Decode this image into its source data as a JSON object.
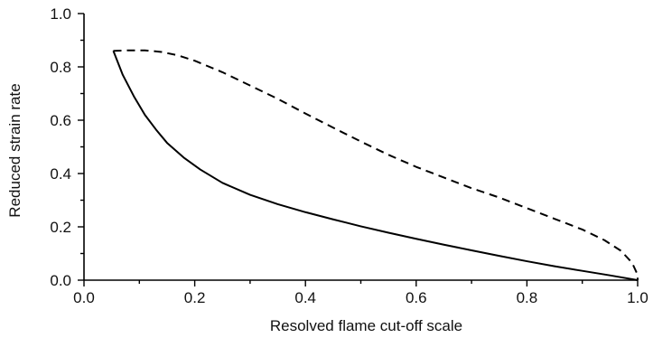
{
  "chart_data": {
    "type": "line",
    "xlabel": "Resolved flame cut-off scale",
    "ylabel": "Reduced strain rate",
    "xlim": [
      0.0,
      1.0
    ],
    "ylim": [
      0.0,
      1.0
    ],
    "x_ticks": [
      "0.0",
      "0.2",
      "0.4",
      "0.6",
      "0.8",
      "1.0"
    ],
    "y_ticks": [
      "0.0",
      "0.2",
      "0.4",
      "0.6",
      "0.8",
      "1.0"
    ],
    "grid": false,
    "legend": "none",
    "series": [
      {
        "style": "solid",
        "points": [
          [
            0.053,
            0.86
          ],
          [
            0.07,
            0.77
          ],
          [
            0.09,
            0.69
          ],
          [
            0.11,
            0.62
          ],
          [
            0.13,
            0.565
          ],
          [
            0.15,
            0.515
          ],
          [
            0.18,
            0.46
          ],
          [
            0.21,
            0.415
          ],
          [
            0.25,
            0.365
          ],
          [
            0.3,
            0.32
          ],
          [
            0.35,
            0.285
          ],
          [
            0.4,
            0.255
          ],
          [
            0.45,
            0.228
          ],
          [
            0.5,
            0.202
          ],
          [
            0.55,
            0.178
          ],
          [
            0.6,
            0.155
          ],
          [
            0.65,
            0.133
          ],
          [
            0.7,
            0.112
          ],
          [
            0.75,
            0.091
          ],
          [
            0.8,
            0.071
          ],
          [
            0.85,
            0.052
          ],
          [
            0.9,
            0.035
          ],
          [
            0.95,
            0.018
          ],
          [
            1.0,
            0.0
          ]
        ]
      },
      {
        "style": "dashed",
        "points": [
          [
            0.053,
            0.86
          ],
          [
            0.08,
            0.862
          ],
          [
            0.11,
            0.862
          ],
          [
            0.14,
            0.856
          ],
          [
            0.17,
            0.843
          ],
          [
            0.2,
            0.823
          ],
          [
            0.25,
            0.78
          ],
          [
            0.3,
            0.73
          ],
          [
            0.35,
            0.68
          ],
          [
            0.4,
            0.625
          ],
          [
            0.45,
            0.572
          ],
          [
            0.5,
            0.52
          ],
          [
            0.55,
            0.47
          ],
          [
            0.6,
            0.425
          ],
          [
            0.65,
            0.385
          ],
          [
            0.7,
            0.345
          ],
          [
            0.75,
            0.31
          ],
          [
            0.8,
            0.27
          ],
          [
            0.85,
            0.23
          ],
          [
            0.9,
            0.19
          ],
          [
            0.94,
            0.15
          ],
          [
            0.97,
            0.11
          ],
          [
            0.99,
            0.065
          ],
          [
            1.0,
            0.02
          ],
          [
            1.0,
            0.0
          ]
        ]
      }
    ]
  }
}
